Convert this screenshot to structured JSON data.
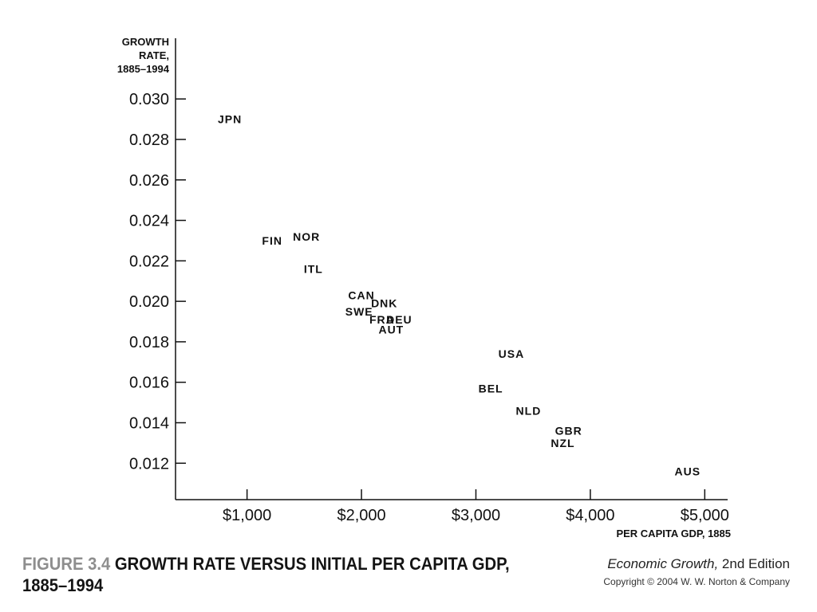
{
  "caption": {
    "figure_number": "FIGURE 3.4",
    "figure_title": "GROWTH RATE VERSUS INITIAL PER CAPITA GDP, 1885–1994"
  },
  "publication": {
    "title": "Economic Growth,",
    "edition": " 2nd Edition",
    "copyright": "Copyright © 2004 W. W. Norton & Company"
  },
  "chart_data": {
    "type": "scatter",
    "title": "GROWTH RATE VERSUS INITIAL PER CAPITA GDP, 1885–1994",
    "xlabel": "PER CAPITA GDP, 1885",
    "ylabel": "GROWTH RATE, 1885–1994",
    "xlim": [
      375,
      5200
    ],
    "ylim": [
      0.0102,
      0.033
    ],
    "x_ticks": [
      1000,
      2000,
      3000,
      4000,
      5000
    ],
    "x_tick_labels": [
      "$1,000",
      "$2,000",
      "$3,000",
      "$4,000",
      "$5,000"
    ],
    "y_ticks": [
      0.012,
      0.014,
      0.016,
      0.018,
      0.02,
      0.022,
      0.024,
      0.026,
      0.028,
      0.03
    ],
    "y_tick_labels": [
      "0.012",
      "0.014",
      "0.016",
      "0.018",
      "0.020",
      "0.022",
      "0.024",
      "0.026",
      "0.028",
      "0.030"
    ],
    "grid": false,
    "legend": "none",
    "marker": "text-label",
    "points": [
      {
        "label": "JPN",
        "x": 850,
        "y": 0.029
      },
      {
        "label": "FIN",
        "x": 1220,
        "y": 0.023
      },
      {
        "label": "NOR",
        "x": 1520,
        "y": 0.0232
      },
      {
        "label": "ITL",
        "x": 1580,
        "y": 0.0216
      },
      {
        "label": "CAN",
        "x": 2000,
        "y": 0.0203
      },
      {
        "label": "DNK",
        "x": 2200,
        "y": 0.0199
      },
      {
        "label": "SWE",
        "x": 1980,
        "y": 0.0195
      },
      {
        "label": "FRA",
        "x": 2180,
        "y": 0.0191
      },
      {
        "label": "DEU",
        "x": 2330,
        "y": 0.0191
      },
      {
        "label": "AUT",
        "x": 2260,
        "y": 0.0186
      },
      {
        "label": "USA",
        "x": 3310,
        "y": 0.0174
      },
      {
        "label": "BEL",
        "x": 3130,
        "y": 0.0157
      },
      {
        "label": "NLD",
        "x": 3460,
        "y": 0.0146
      },
      {
        "label": "GBR",
        "x": 3810,
        "y": 0.0136
      },
      {
        "label": "NZL",
        "x": 3760,
        "y": 0.013
      },
      {
        "label": "AUS",
        "x": 4850,
        "y": 0.0116
      }
    ]
  }
}
